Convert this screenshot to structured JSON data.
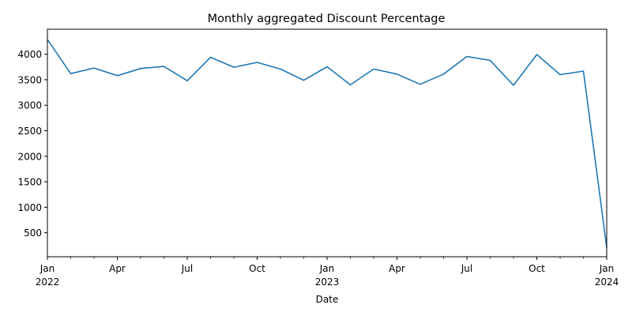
{
  "chart_data": {
    "type": "line",
    "title": "Monthly aggregated Discount Percentage",
    "xlabel": "Date",
    "ylabel": "",
    "x_tick_labels": [
      {
        "date": "2022-01",
        "label": "Jan",
        "sub": "2022"
      },
      {
        "date": "2022-04",
        "label": "Apr",
        "sub": ""
      },
      {
        "date": "2022-07",
        "label": "Jul",
        "sub": ""
      },
      {
        "date": "2022-10",
        "label": "Oct",
        "sub": ""
      },
      {
        "date": "2023-01",
        "label": "Jan",
        "sub": "2023"
      },
      {
        "date": "2023-04",
        "label": "Apr",
        "sub": ""
      },
      {
        "date": "2023-07",
        "label": "Jul",
        "sub": ""
      },
      {
        "date": "2023-10",
        "label": "Oct",
        "sub": ""
      },
      {
        "date": "2024-01",
        "label": "Jan",
        "sub": "2024"
      }
    ],
    "y_ticks": [
      500,
      1000,
      1500,
      2000,
      2500,
      3000,
      3500,
      4000
    ],
    "xlim": [
      "2022-01",
      "2024-01"
    ],
    "ylim": [
      30,
      4490
    ],
    "grid": false,
    "series": [
      {
        "color": "#1f77b4",
        "x": [
          "2022-01",
          "2022-02",
          "2022-03",
          "2022-04",
          "2022-05",
          "2022-06",
          "2022-07",
          "2022-08",
          "2022-09",
          "2022-10",
          "2022-11",
          "2022-12",
          "2023-01",
          "2023-02",
          "2023-03",
          "2023-04",
          "2023-05",
          "2023-06",
          "2023-07",
          "2023-08",
          "2023-09",
          "2023-10",
          "2023-11",
          "2023-12",
          "2024-01"
        ],
        "values": [
          4290,
          3620,
          3730,
          3580,
          3720,
          3760,
          3480,
          3940,
          3745,
          3840,
          3710,
          3490,
          3755,
          3400,
          3710,
          3610,
          3410,
          3610,
          3955,
          3880,
          3390,
          3995,
          3600,
          3670,
          210
        ]
      }
    ]
  }
}
